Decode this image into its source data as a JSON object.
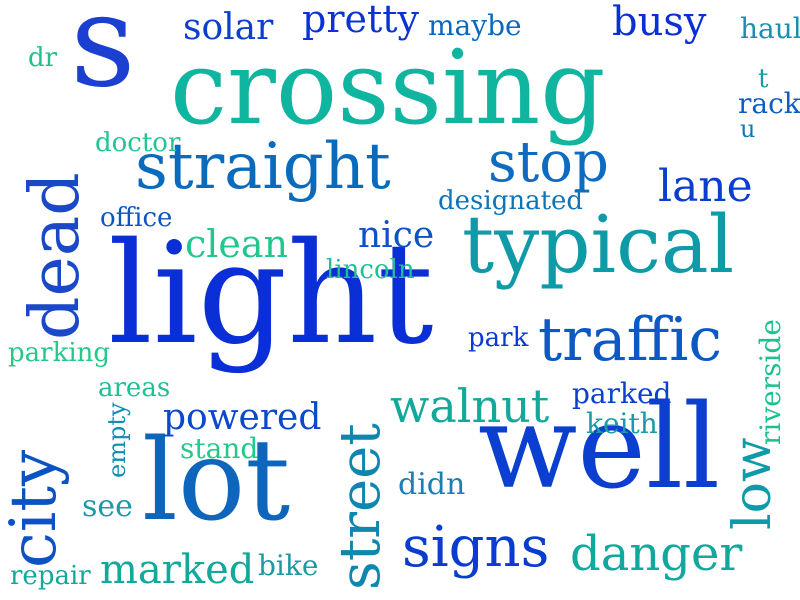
{
  "words": [
    {
      "text": "s",
      "color": "#1a3fd1"
    },
    {
      "text": "crossing",
      "color": "#10b5a0"
    },
    {
      "text": "dead",
      "color": "#1b48c8"
    },
    {
      "text": "straight",
      "color": "#0a6bbd"
    },
    {
      "text": "stop",
      "color": "#0d6cc1"
    },
    {
      "text": "lane",
      "color": "#0b3dcf"
    },
    {
      "text": "typical",
      "color": "#0f9aa8"
    },
    {
      "text": "light",
      "color": "#0a2fd6"
    },
    {
      "text": "traffic",
      "color": "#0b58c6"
    },
    {
      "text": "well",
      "color": "#0a3fd0"
    },
    {
      "text": "lot",
      "color": "#0d66bb"
    },
    {
      "text": "city",
      "color": "#0b52c3"
    },
    {
      "text": "street",
      "color": "#0f86ad"
    },
    {
      "text": "walnut",
      "color": "#12a89a"
    },
    {
      "text": "signs",
      "color": "#0a3dcf"
    },
    {
      "text": "danger",
      "color": "#12a89d"
    },
    {
      "text": "marked",
      "color": "#12a89a"
    },
    {
      "text": "low",
      "color": "#0f9aa8"
    },
    {
      "text": "solar",
      "color": "#0b3fcf"
    },
    {
      "text": "pretty",
      "color": "#0a33d2"
    },
    {
      "text": "maybe",
      "color": "#0c67bd"
    },
    {
      "text": "busy",
      "color": "#0a30d4"
    },
    {
      "text": "haul",
      "color": "#1a8fae"
    },
    {
      "text": "dr",
      "color": "#20c08a"
    },
    {
      "text": "t",
      "color": "#1b9aa8"
    },
    {
      "text": "rack",
      "color": "#0e5ec2"
    },
    {
      "text": "u",
      "color": "#1078b7"
    },
    {
      "text": "doctor",
      "color": "#22c592"
    },
    {
      "text": "designated",
      "color": "#0e74b8"
    },
    {
      "text": "office",
      "color": "#0c56c3"
    },
    {
      "text": "clean",
      "color": "#23c68c"
    },
    {
      "text": "nice",
      "color": "#0d52c6"
    },
    {
      "text": "lincoln",
      "color": "#20bf95"
    },
    {
      "text": "parking",
      "color": "#24c98a"
    },
    {
      "text": "park",
      "color": "#0a3ad0"
    },
    {
      "text": "areas",
      "color": "#20bf95"
    },
    {
      "text": "powered",
      "color": "#0a48cd"
    },
    {
      "text": "parked",
      "color": "#0b3fcf"
    },
    {
      "text": "keith",
      "color": "#1a9aa5"
    },
    {
      "text": "riverside",
      "color": "#1fc08f"
    },
    {
      "text": "stand",
      "color": "#24c98a"
    },
    {
      "text": "empty",
      "color": "#0f8eb0"
    },
    {
      "text": "didn",
      "color": "#1b7fb5"
    },
    {
      "text": "see",
      "color": "#1b9aa8"
    },
    {
      "text": "repair",
      "color": "#12a89a"
    },
    {
      "text": "bike",
      "color": "#1a9aa5"
    }
  ]
}
